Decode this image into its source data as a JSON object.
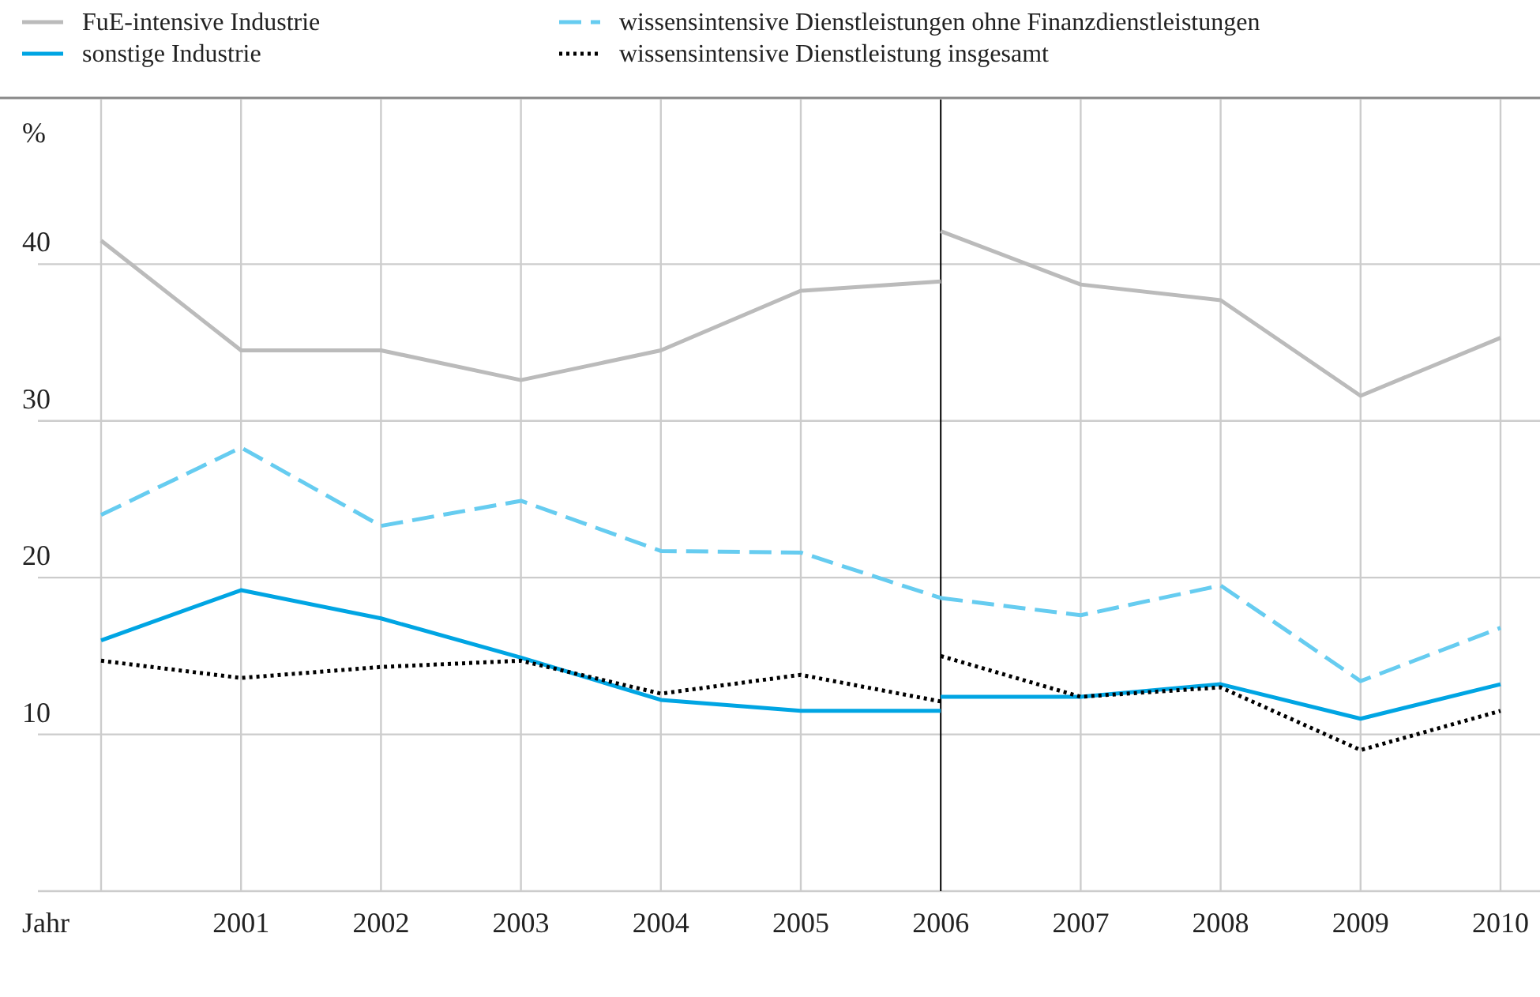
{
  "chart_data": {
    "type": "line",
    "xlabel": "Jahr",
    "ylabel": "%",
    "x": [
      2000,
      2001,
      2002,
      2003,
      2004,
      2005,
      2006,
      2006,
      2007,
      2008,
      2009,
      2010
    ],
    "xlim": [
      2000,
      2010
    ],
    "ylim": [
      0,
      50.5
    ],
    "xticks": [
      {
        "value": 2000,
        "label": null
      },
      2001,
      2002,
      2003,
      2004,
      2005,
      2006,
      2007,
      2008,
      2009,
      2010
    ],
    "yticks": [
      {
        "value": 0,
        "label": null
      },
      10,
      20,
      30,
      40
    ],
    "grid": true,
    "legend": "top left",
    "series": [
      {
        "name": "FuE-intensive Industrie",
        "color": "#bbbbbb",
        "line_style": "solid",
        "values": [
          41.5,
          34.5,
          34.5,
          32.6,
          34.5,
          38.3,
          38.9,
          42.1,
          38.7,
          37.7,
          31.6,
          35.3
        ]
      },
      {
        "name": "sonstige Industrie",
        "color": "#00a5e3",
        "line_style": "solid",
        "values": [
          16.0,
          19.2,
          17.4,
          14.9,
          12.2,
          11.5,
          11.5,
          12.4,
          12.4,
          13.2,
          11.0,
          13.2
        ]
      },
      {
        "name": "wissensintensive Dienstleistungen ohne Finanzdienstleistungen",
        "color": "#66ccf0",
        "line_style": "dashed",
        "values": [
          24.0,
          28.3,
          23.3,
          24.9,
          21.7,
          21.6,
          18.7,
          18.7,
          17.6,
          19.5,
          13.4,
          16.8
        ]
      },
      {
        "name": "wissensintensive Dienstleistung insgesamt",
        "color": "#000000",
        "line_style": "dotted",
        "values": [
          14.7,
          13.6,
          14.3,
          14.7,
          12.6,
          13.8,
          12.1,
          15.0,
          12.4,
          13.0,
          9.0,
          11.5
        ]
      }
    ],
    "ref_lines": [
      {
        "axis": "x",
        "value": 2006,
        "color": "#000000"
      }
    ]
  }
}
